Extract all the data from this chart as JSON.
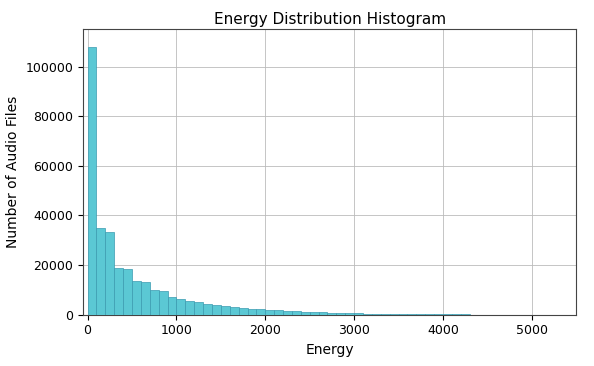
{
  "title": "Energy Distribution Histogram",
  "xlabel": "Energy",
  "ylabel": "Number of Audio Files",
  "bar_color": "#5bc8d4",
  "bar_edge_color": "#3a9ab0",
  "xlim": [
    -50,
    5500
  ],
  "ylim": [
    0,
    115000
  ],
  "xticks": [
    0,
    1000,
    2000,
    3000,
    4000,
    5000
  ],
  "yticks": [
    0,
    20000,
    40000,
    60000,
    80000,
    100000
  ],
  "bin_width": 100,
  "bar_heights": [
    108000,
    35000,
    33500,
    19000,
    18500,
    13500,
    13000,
    10000,
    9500,
    7000,
    6500,
    5500,
    5000,
    4500,
    4000,
    3500,
    3000,
    2800,
    2500,
    2200,
    2000,
    1800,
    1600,
    1400,
    1200,
    1100,
    950,
    850,
    750,
    650,
    550,
    480,
    420,
    370,
    320,
    280,
    240,
    210,
    180,
    160,
    140,
    120,
    105,
    90,
    78,
    68,
    58,
    50,
    43,
    37,
    32,
    27,
    23,
    19,
    15
  ],
  "background_color": "#ffffff",
  "grid_color": "#bbbbbb",
  "title_fontsize": 11,
  "label_fontsize": 10,
  "tick_fontsize": 9
}
